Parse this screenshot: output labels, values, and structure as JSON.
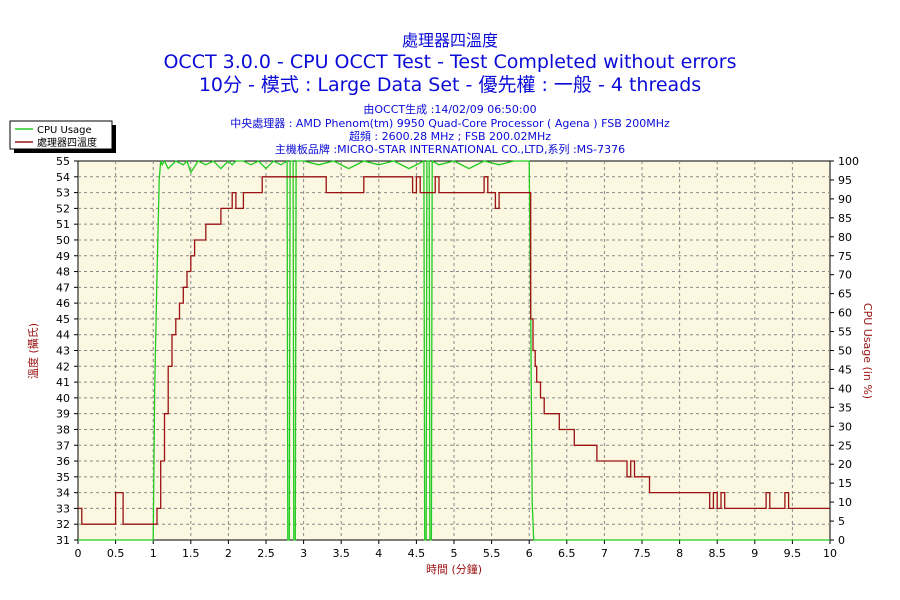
{
  "header": {
    "title_top": "處理器四溫度",
    "title_main": "OCCT 3.0.0 - CPU OCCT Test - Test Completed without errors",
    "title_sub": "10分 - 模式 : Large Data Set - 優先權 : 一般 - 4 threads",
    "info_generated": "由OCCT生成 :14/02/09 06:50:00",
    "info_cpu": "中央處理器 : AMD Phenom(tm) 9950 Quad-Core Processor ( Agena ) FSB 200MHz",
    "info_clock": "超頻 : 2600.28 MHz ; FSB 200.02MHz",
    "info_board": "主機板品牌 :MICRO-STAR INTERNATIONAL CO.,LTD,系列 :MS-7376"
  },
  "colors": {
    "plot_bg": "#fbf7e1",
    "grid": "#8a8a8a",
    "temp_line": "#9a1212",
    "cpu_line": "#22cc22",
    "title": "#0b0bd8"
  },
  "chart_data": {
    "type": "line",
    "xlabel": "時間 (分鐘)",
    "ylabel_left": "溫度 (攝氏)",
    "ylabel_right": "CPU Usage (in %)",
    "xlim": [
      0,
      10
    ],
    "ylim_left": [
      31,
      55
    ],
    "ylim_right": [
      0,
      100
    ],
    "x_ticks": [
      "0",
      "0.5",
      "1",
      "1.5",
      "2",
      "2.5",
      "3",
      "3.5",
      "4",
      "4.5",
      "5",
      "5.5",
      "6",
      "6.5",
      "7",
      "7.5",
      "8",
      "8.5",
      "9",
      "9.5",
      "10"
    ],
    "y_left_ticks": [
      "31",
      "32",
      "33",
      "34",
      "35",
      "36",
      "37",
      "38",
      "39",
      "40",
      "41",
      "42",
      "43",
      "44",
      "45",
      "46",
      "47",
      "48",
      "49",
      "50",
      "51",
      "52",
      "53",
      "54",
      "55"
    ],
    "y_right_ticks": [
      "0",
      "5",
      "10",
      "15",
      "20",
      "25",
      "30",
      "35",
      "40",
      "45",
      "50",
      "55",
      "60",
      "65",
      "70",
      "75",
      "80",
      "85",
      "90",
      "95",
      "100"
    ],
    "grid": true,
    "legend_position": "top-left",
    "series": [
      {
        "name": "CPU Usage",
        "axis": "right",
        "x": [
          0,
          1.0,
          1.02,
          1.05,
          1.08,
          1.1,
          1.12,
          1.15,
          1.2,
          1.3,
          1.4,
          1.45,
          1.5,
          1.6,
          1.7,
          1.8,
          1.9,
          2.0,
          2.05,
          2.1,
          2.2,
          2.3,
          2.4,
          2.5,
          2.6,
          2.7,
          2.78,
          2.79,
          2.81,
          2.82,
          2.86,
          2.87,
          2.89,
          2.9,
          3.0,
          3.2,
          3.4,
          3.6,
          3.8,
          4.0,
          4.2,
          4.4,
          4.6,
          4.61,
          4.63,
          4.64,
          4.67,
          4.68,
          4.7,
          4.71,
          4.8,
          5.0,
          5.2,
          5.4,
          5.6,
          5.8,
          6.0,
          6.02,
          6.04,
          6.06,
          10
        ],
        "y": [
          0,
          0,
          40,
          70,
          95,
          100,
          99,
          100,
          98,
          100,
          99,
          100,
          97,
          100,
          99,
          100,
          98,
          100,
          99,
          100,
          100,
          99,
          100,
          98,
          100,
          99,
          100,
          0,
          0,
          100,
          100,
          0,
          0,
          100,
          100,
          99,
          100,
          98,
          100,
          99,
          100,
          98,
          100,
          0,
          0,
          100,
          100,
          0,
          0,
          100,
          99,
          100,
          98,
          100,
          99,
          100,
          100,
          60,
          10,
          0,
          0
        ]
      },
      {
        "name": "處理器四溫度",
        "axis": "left",
        "x": [
          0,
          0.05,
          0.1,
          0.45,
          0.5,
          0.55,
          0.6,
          1.0,
          1.05,
          1.1,
          1.15,
          1.2,
          1.25,
          1.3,
          1.35,
          1.4,
          1.45,
          1.5,
          1.55,
          1.6,
          1.7,
          1.75,
          1.8,
          1.9,
          2.0,
          2.05,
          2.1,
          2.2,
          2.3,
          2.4,
          2.45,
          2.5,
          2.6,
          2.7,
          2.8,
          3.0,
          3.3,
          3.4,
          3.5,
          3.8,
          4.0,
          4.3,
          4.45,
          4.5,
          4.55,
          4.6,
          4.7,
          4.75,
          4.8,
          4.85,
          5.0,
          5.2,
          5.4,
          5.45,
          5.5,
          5.55,
          5.6,
          5.65,
          5.7,
          5.75,
          5.8,
          6.0,
          6.02,
          6.05,
          6.08,
          6.1,
          6.15,
          6.2,
          6.25,
          6.3,
          6.4,
          6.5,
          6.6,
          6.8,
          6.9,
          7.0,
          7.3,
          7.35,
          7.4,
          7.5,
          7.6,
          8.0,
          8.3,
          8.4,
          8.45,
          8.5,
          8.55,
          8.6,
          8.65,
          8.7,
          9.15,
          9.2,
          9.25,
          9.4,
          9.45,
          9.5,
          10
        ],
        "y": [
          33,
          32,
          32,
          32,
          34,
          34,
          32,
          32,
          33,
          36,
          39,
          42,
          44,
          45,
          46,
          47,
          48,
          49,
          50,
          50,
          51,
          51,
          51,
          52,
          52,
          53,
          52,
          53,
          53,
          53,
          54,
          54,
          54,
          54,
          54,
          54,
          53,
          53,
          53,
          54,
          54,
          54,
          53,
          54,
          53,
          53,
          53,
          54,
          53,
          53,
          53,
          53,
          54,
          53,
          53,
          52,
          53,
          53,
          53,
          53,
          53,
          53,
          45,
          43,
          42,
          41,
          40,
          39,
          39,
          39,
          38,
          38,
          37,
          37,
          36,
          36,
          35,
          36,
          35,
          35,
          34,
          34,
          34,
          33,
          34,
          33,
          34,
          33,
          33,
          33,
          34,
          33,
          33,
          34,
          33,
          33,
          33
        ]
      }
    ]
  }
}
